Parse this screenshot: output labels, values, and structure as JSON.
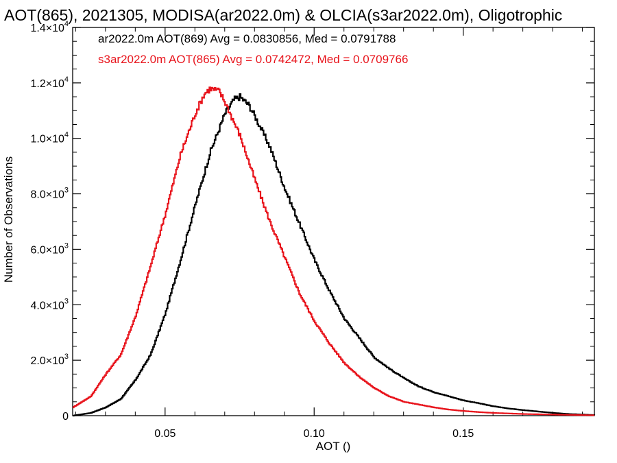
{
  "chart_data": {
    "type": "line",
    "title": "AOT(865), 2021305, MODISA(ar2022.0m) & OLCIA(s3ar2022.0m), Oligotrophic",
    "xlabel": "AOT ()",
    "ylabel": "Number of Observations",
    "xlim": [
      0.019,
      0.194
    ],
    "ylim": [
      0,
      14000
    ],
    "grid": false,
    "x_ticks": [
      {
        "value": 0.05,
        "label": "0.05"
      },
      {
        "value": 0.1,
        "label": "0.10"
      },
      {
        "value": 0.15,
        "label": "0.15"
      }
    ],
    "y_ticks": [
      {
        "value": 0,
        "mant": "0",
        "exp": ""
      },
      {
        "value": 2000,
        "mant": "2.0×10",
        "exp": "3"
      },
      {
        "value": 4000,
        "mant": "4.0×10",
        "exp": "3"
      },
      {
        "value": 6000,
        "mant": "6.0×10",
        "exp": "3"
      },
      {
        "value": 8000,
        "mant": "8.0×10",
        "exp": "3"
      },
      {
        "value": 10000,
        "mant": "1.0×10",
        "exp": "4"
      },
      {
        "value": 12000,
        "mant": "1.2×10",
        "exp": "4"
      },
      {
        "value": 14000,
        "mant": "1.4×10",
        "exp": "4"
      }
    ],
    "annotations": [
      {
        "text": "ar2022.0m AOT(869) Avg = 0.0830856, Med = 0.0791788",
        "color": "#000000"
      },
      {
        "text": "s3ar2022.0m AOT(865) Avg = 0.0742472, Med = 0.0709766",
        "color": "#e8141c"
      }
    ],
    "series": [
      {
        "color": "#000000",
        "step": true,
        "points": [
          [
            0.019,
            0
          ],
          [
            0.025,
            100
          ],
          [
            0.03,
            300
          ],
          [
            0.035,
            600
          ],
          [
            0.04,
            1300
          ],
          [
            0.045,
            2200
          ],
          [
            0.05,
            3700
          ],
          [
            0.055,
            5600
          ],
          [
            0.06,
            7600
          ],
          [
            0.065,
            9500
          ],
          [
            0.07,
            10900
          ],
          [
            0.073,
            11400
          ],
          [
            0.075,
            11500
          ],
          [
            0.078,
            11200
          ],
          [
            0.08,
            10800
          ],
          [
            0.085,
            9700
          ],
          [
            0.09,
            8200
          ],
          [
            0.095,
            6900
          ],
          [
            0.1,
            5600
          ],
          [
            0.105,
            4500
          ],
          [
            0.11,
            3500
          ],
          [
            0.115,
            2800
          ],
          [
            0.12,
            2100
          ],
          [
            0.125,
            1700
          ],
          [
            0.13,
            1350
          ],
          [
            0.135,
            1050
          ],
          [
            0.14,
            850
          ],
          [
            0.145,
            700
          ],
          [
            0.15,
            550
          ],
          [
            0.155,
            450
          ],
          [
            0.16,
            340
          ],
          [
            0.165,
            260
          ],
          [
            0.17,
            200
          ],
          [
            0.175,
            150
          ],
          [
            0.18,
            100
          ],
          [
            0.185,
            60
          ],
          [
            0.19,
            40
          ],
          [
            0.194,
            20
          ]
        ]
      },
      {
        "color": "#e8141c",
        "step": true,
        "points": [
          [
            0.019,
            300
          ],
          [
            0.025,
            700
          ],
          [
            0.03,
            1500
          ],
          [
            0.035,
            2200
          ],
          [
            0.04,
            3600
          ],
          [
            0.045,
            5400
          ],
          [
            0.05,
            7300
          ],
          [
            0.055,
            9400
          ],
          [
            0.06,
            10900
          ],
          [
            0.063,
            11600
          ],
          [
            0.065,
            11800
          ],
          [
            0.068,
            11700
          ],
          [
            0.07,
            11300
          ],
          [
            0.075,
            10100
          ],
          [
            0.08,
            8500
          ],
          [
            0.085,
            7000
          ],
          [
            0.09,
            5700
          ],
          [
            0.095,
            4400
          ],
          [
            0.1,
            3400
          ],
          [
            0.105,
            2600
          ],
          [
            0.11,
            1900
          ],
          [
            0.115,
            1400
          ],
          [
            0.12,
            1000
          ],
          [
            0.125,
            700
          ],
          [
            0.13,
            500
          ],
          [
            0.135,
            400
          ],
          [
            0.14,
            300
          ],
          [
            0.145,
            220
          ],
          [
            0.15,
            170
          ],
          [
            0.155,
            130
          ],
          [
            0.16,
            100
          ],
          [
            0.165,
            80
          ],
          [
            0.17,
            60
          ],
          [
            0.175,
            50
          ],
          [
            0.18,
            40
          ],
          [
            0.185,
            30
          ],
          [
            0.19,
            20
          ],
          [
            0.194,
            15
          ]
        ]
      }
    ]
  }
}
